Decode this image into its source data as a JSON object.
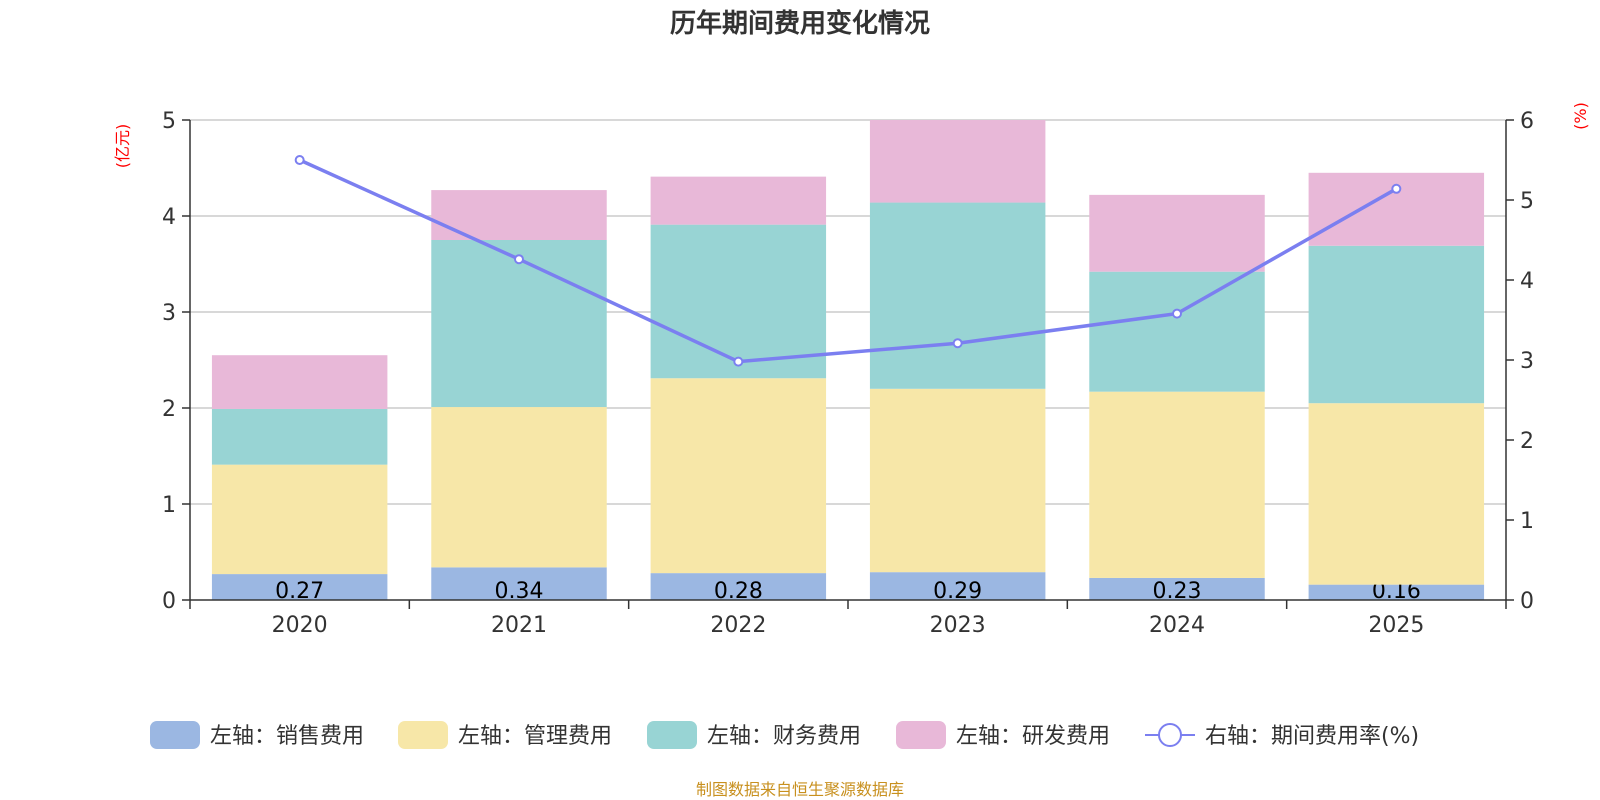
{
  "chart_data": {
    "type": "bar",
    "title": "历年期间费用变化情况",
    "categories": [
      "2020",
      "2021",
      "2022",
      "2023",
      "2024",
      "2025"
    ],
    "y_left": {
      "unit": "(亿元)",
      "range": [
        0,
        5
      ],
      "ticks": [
        "0",
        "1",
        "2",
        "3",
        "4",
        "5"
      ]
    },
    "y_right": {
      "unit": "(%)",
      "range": [
        0,
        6
      ],
      "ticks": [
        "0",
        "1",
        "2",
        "3",
        "4",
        "5",
        "6"
      ]
    },
    "series": [
      {
        "name": "左轴：销售费用",
        "type": "bar",
        "axis": "left",
        "color": "#9bb7e2",
        "values": [
          0.27,
          0.34,
          0.28,
          0.29,
          0.23,
          0.16
        ],
        "labels": [
          "0.27",
          "0.34",
          "0.28",
          "0.29",
          "0.23",
          "0.16"
        ]
      },
      {
        "name": "左轴：管理费用",
        "type": "bar",
        "axis": "left",
        "color": "#f7e7a8",
        "values": [
          1.14,
          1.67,
          2.03,
          1.91,
          1.94,
          1.89
        ]
      },
      {
        "name": "左轴：财务费用",
        "type": "bar",
        "axis": "left",
        "color": "#98d4d4",
        "values": [
          0.58,
          1.74,
          1.6,
          1.94,
          1.25,
          1.64
        ]
      },
      {
        "name": "左轴：研发费用",
        "type": "bar",
        "axis": "left",
        "color": "#e8b8d8",
        "values": [
          0.56,
          0.52,
          0.5,
          0.86,
          0.8,
          0.76
        ]
      },
      {
        "name": "右轴：期间费用率(%)",
        "type": "line",
        "axis": "right",
        "color": "#7b7ff0",
        "values": [
          5.5,
          4.26,
          2.98,
          3.21,
          3.58,
          5.14
        ]
      }
    ],
    "grid": true,
    "legend_position": "bottom",
    "source": "制图数据来自恒生聚源数据库"
  }
}
